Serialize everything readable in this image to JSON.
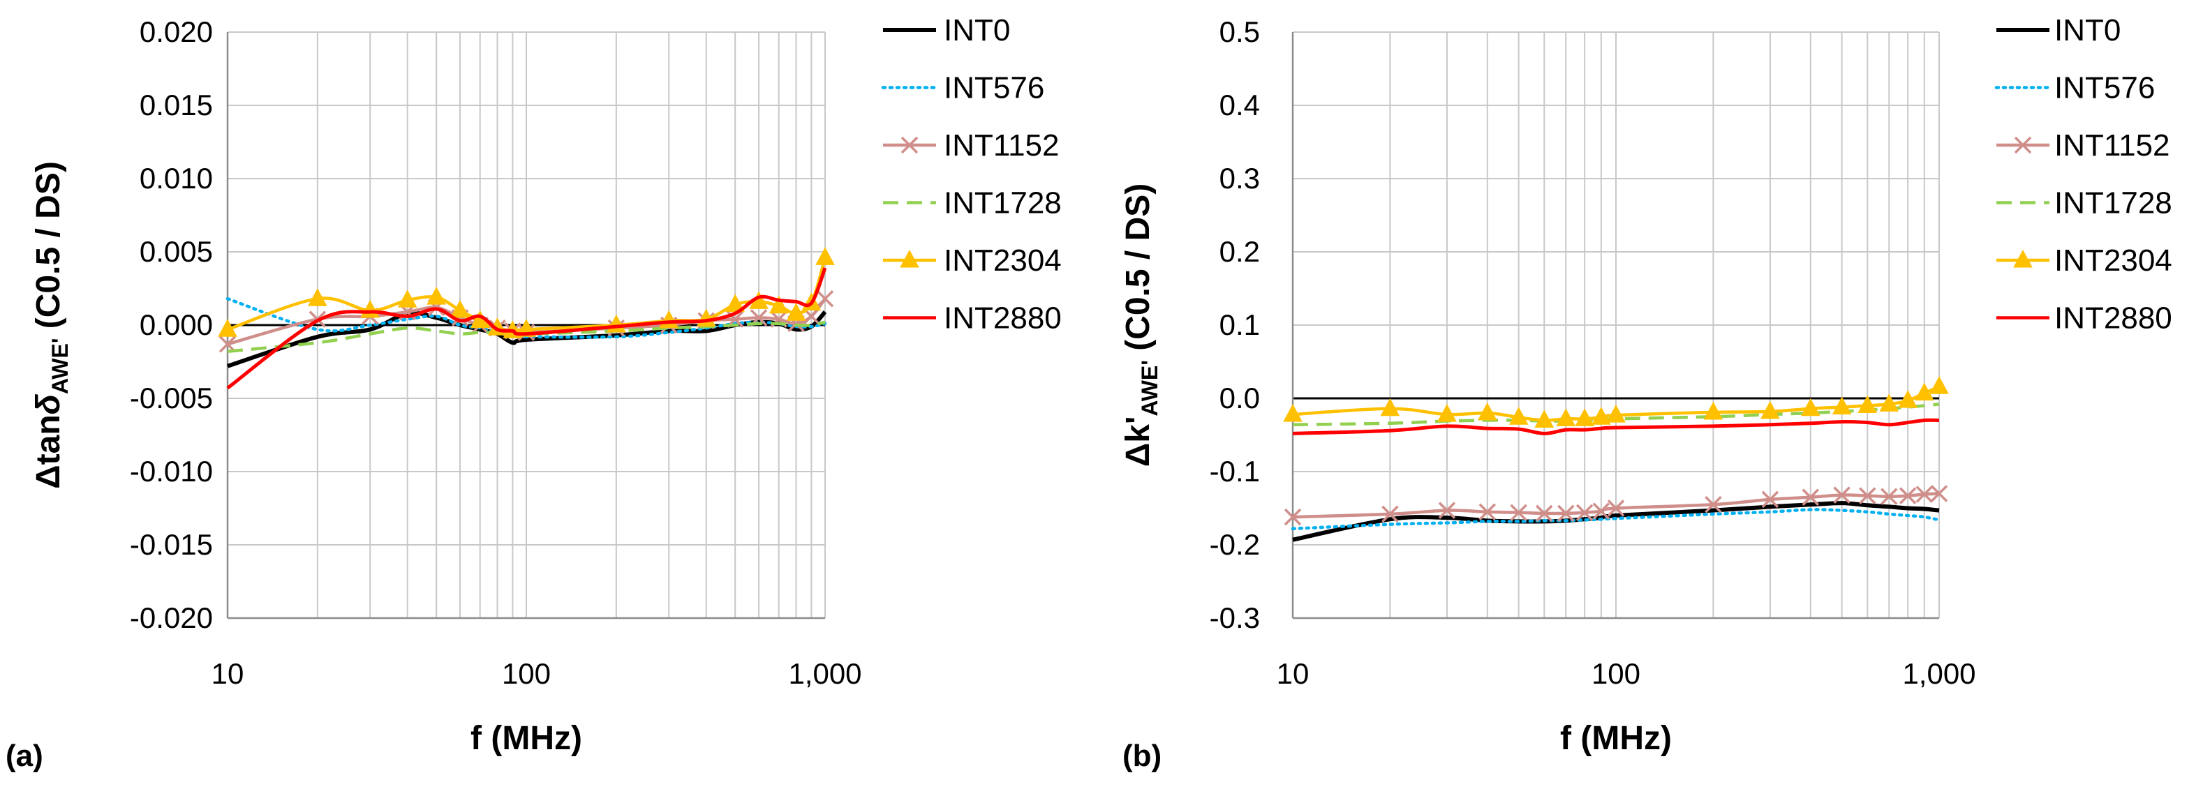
{
  "chart_data": [
    {
      "type": "line",
      "panel_label": "(a)",
      "title": "",
      "xlabel": "f (MHz)",
      "ylabel": {
        "prefix": "Δtan",
        "symbol": "δ",
        "sub": "AWE'",
        "suffix": " (C0.5 / DS)"
      },
      "xscale": "log",
      "xlim": [
        10,
        1000
      ],
      "xticks": [
        10,
        100,
        1000
      ],
      "xticklabels": [
        "10",
        "100",
        "1,000"
      ],
      "ylim": [
        -0.02,
        0.02
      ],
      "yticks": [
        -0.02,
        -0.015,
        -0.01,
        -0.005,
        0,
        0.005,
        0.01,
        0.015,
        0.02
      ],
      "yticklabels": [
        "-0.020",
        "-0.015",
        "-0.010",
        "-0.005",
        "0.000",
        "0.005",
        "0.010",
        "0.015",
        "0.020"
      ],
      "grid": {
        "major_y": true,
        "minor_x": true
      },
      "legend_position": "right",
      "x": [
        10,
        20,
        30,
        40,
        50,
        60,
        70,
        80,
        90,
        100,
        200,
        300,
        400,
        500,
        600,
        700,
        800,
        900,
        1000
      ],
      "series": [
        {
          "name": "INT0",
          "values": [
            -0.0028,
            -0.0008,
            -0.0003,
            0.0008,
            0.0005,
            0.0,
            -0.0003,
            -0.0006,
            -0.0012,
            -0.001,
            -0.0007,
            -0.0004,
            -0.0004,
            0.0,
            0.0002,
            0.0001,
            -0.0003,
            -0.0001,
            0.0009
          ]
        },
        {
          "name": "INT576",
          "values": [
            0.0018,
            -0.0003,
            0.0,
            0.0004,
            0.0006,
            0.0,
            -0.0002,
            -0.0005,
            -0.0008,
            -0.0008,
            -0.0008,
            -0.0005,
            -0.0002,
            0.0001,
            0.0002,
            0.0001,
            -0.0001,
            -0.0001,
            0.0001
          ]
        },
        {
          "name": "INT1152",
          "values": [
            -0.0013,
            0.0004,
            0.0006,
            0.0009,
            0.0012,
            0.0005,
            0.0,
            -0.0002,
            -0.0004,
            -0.0005,
            -0.0002,
            0.0,
            0.0003,
            0.0004,
            0.0005,
            0.0004,
            0.0001,
            0.0006,
            0.0018
          ]
        },
        {
          "name": "INT1728",
          "values": [
            -0.0018,
            -0.0012,
            -0.0006,
            -0.0002,
            -0.0004,
            -0.0006,
            -0.0005,
            -0.0005,
            -0.0005,
            -0.0006,
            -0.0004,
            -0.0002,
            -0.0001,
            0.0,
            0.0001,
            0.0001,
            0.0,
            0.0,
            0.0002
          ]
        },
        {
          "name": "INT2304",
          "values": [
            -0.0003,
            0.0018,
            0.001,
            0.0017,
            0.0019,
            0.001,
            0.0003,
            -0.0002,
            -0.0004,
            -0.0003,
            0.0,
            0.0003,
            0.0004,
            0.0014,
            0.0016,
            0.0013,
            0.0008,
            0.0015,
            0.0046
          ]
        },
        {
          "name": "INT2880",
          "values": [
            -0.0043,
            0.0003,
            0.0009,
            0.0006,
            0.0011,
            0.0003,
            0.0006,
            -0.0003,
            -0.0004,
            -0.0006,
            -0.0001,
            0.0002,
            0.0003,
            0.0008,
            0.0019,
            0.0017,
            0.0016,
            0.0015,
            0.0039
          ]
        }
      ]
    },
    {
      "type": "line",
      "panel_label": "(b)",
      "title": "",
      "xlabel": "f (MHz)",
      "ylabel": {
        "prefix": "Δk'",
        "symbol": "",
        "sub": "AWE'",
        "suffix": " (C0.5 / DS)"
      },
      "xscale": "log",
      "xlim": [
        10,
        1000
      ],
      "xticks": [
        10,
        100,
        1000
      ],
      "xticklabels": [
        "10",
        "100",
        "1,000"
      ],
      "ylim": [
        -0.3,
        0.5
      ],
      "yticks": [
        -0.3,
        -0.2,
        -0.1,
        0,
        0.1,
        0.2,
        0.3,
        0.4,
        0.5
      ],
      "yticklabels": [
        "-0.3",
        "-0.2",
        "-0.1",
        "0.0",
        "0.1",
        "0.2",
        "0.3",
        "0.4",
        "0.5"
      ],
      "grid": {
        "major_y": true,
        "minor_x": true
      },
      "legend_position": "right",
      "x": [
        10,
        20,
        30,
        40,
        50,
        60,
        70,
        80,
        90,
        100,
        200,
        300,
        400,
        500,
        600,
        700,
        800,
        900,
        1000
      ],
      "series": [
        {
          "name": "INT0",
          "values": [
            -0.193,
            -0.165,
            -0.163,
            -0.167,
            -0.168,
            -0.168,
            -0.167,
            -0.165,
            -0.163,
            -0.16,
            -0.153,
            -0.148,
            -0.145,
            -0.143,
            -0.146,
            -0.148,
            -0.15,
            -0.151,
            -0.153
          ]
        },
        {
          "name": "INT576",
          "values": [
            -0.178,
            -0.172,
            -0.17,
            -0.168,
            -0.168,
            -0.167,
            -0.167,
            -0.166,
            -0.165,
            -0.164,
            -0.158,
            -0.155,
            -0.152,
            -0.153,
            -0.155,
            -0.158,
            -0.16,
            -0.162,
            -0.166
          ]
        },
        {
          "name": "INT1152",
          "values": [
            -0.162,
            -0.158,
            -0.153,
            -0.155,
            -0.156,
            -0.157,
            -0.157,
            -0.156,
            -0.154,
            -0.15,
            -0.145,
            -0.138,
            -0.135,
            -0.132,
            -0.133,
            -0.134,
            -0.133,
            -0.131,
            -0.13
          ]
        },
        {
          "name": "INT1728",
          "values": [
            -0.036,
            -0.034,
            -0.031,
            -0.03,
            -0.03,
            -0.031,
            -0.031,
            -0.03,
            -0.029,
            -0.028,
            -0.025,
            -0.022,
            -0.02,
            -0.018,
            -0.016,
            -0.014,
            -0.012,
            -0.01,
            -0.008
          ]
        },
        {
          "name": "INT2304",
          "values": [
            -0.022,
            -0.014,
            -0.022,
            -0.02,
            -0.026,
            -0.03,
            -0.028,
            -0.028,
            -0.026,
            -0.023,
            -0.019,
            -0.018,
            -0.014,
            -0.012,
            -0.01,
            -0.008,
            -0.003,
            0.007,
            0.016
          ]
        },
        {
          "name": "INT2880",
          "values": [
            -0.048,
            -0.044,
            -0.038,
            -0.041,
            -0.042,
            -0.048,
            -0.043,
            -0.043,
            -0.041,
            -0.04,
            -0.038,
            -0.036,
            -0.034,
            -0.032,
            -0.033,
            -0.036,
            -0.033,
            -0.03,
            -0.03
          ]
        }
      ]
    }
  ],
  "styles": {
    "INT0": {
      "color": "#000000",
      "dash": "solid",
      "marker": "none"
    },
    "INT576": {
      "color": "#00B0F0",
      "dash": "dotted",
      "marker": "none"
    },
    "INT1152": {
      "color": "#D08E8A",
      "dash": "solid",
      "marker": "x"
    },
    "INT1728": {
      "color": "#92D050",
      "dash": "dashed",
      "marker": "none"
    },
    "INT2304": {
      "color": "#FFC000",
      "dash": "solid",
      "marker": "triangle"
    },
    "INT2880": {
      "color": "#FF0000",
      "dash": "solid",
      "marker": "none"
    }
  },
  "colors": {
    "grid": "#C8C8C8",
    "axis": "#8C8C8C",
    "zero_line": "#000000"
  }
}
